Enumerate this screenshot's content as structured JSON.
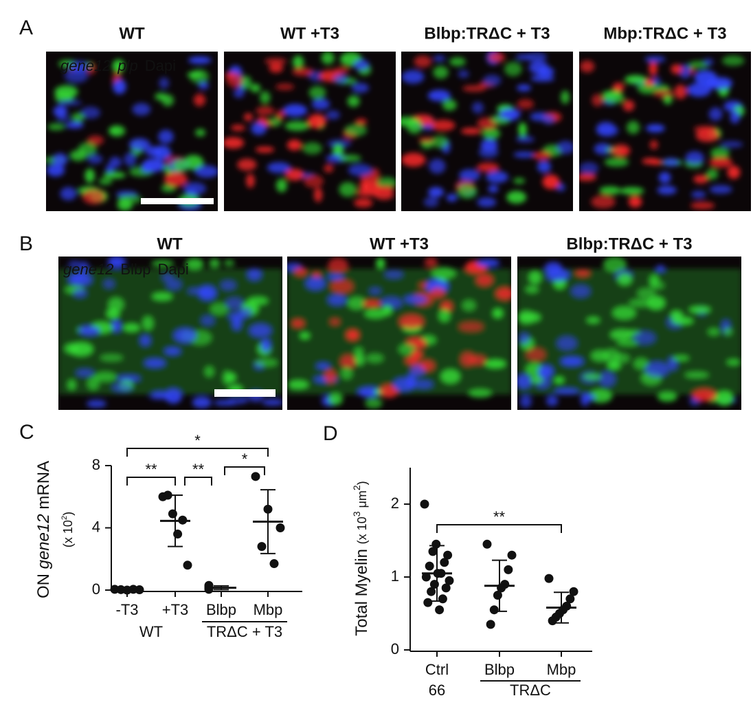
{
  "panel_a": {
    "letter": "A",
    "titles": [
      "WT",
      "WT +T3",
      "Blbp:TRΔC + T3",
      "Mbp:TRΔC + T3"
    ],
    "legend": [
      {
        "text": "gene12",
        "color": "#ff2020",
        "italic": true
      },
      {
        "text": "plp",
        "color": "#30e030",
        "italic": true
      },
      {
        "text": "Dapi",
        "color": "#3040ff"
      }
    ]
  },
  "panel_b": {
    "letter": "B",
    "titles": [
      "WT",
      "WT +T3",
      "Blbp:TRΔC + T3"
    ],
    "legend": [
      {
        "text": "gene12",
        "color": "#ff2020",
        "italic": true
      },
      {
        "text": "Blbp",
        "color": "#30e030"
      },
      {
        "text": "Dapi",
        "color": "#3040ff"
      }
    ]
  },
  "chart_data": [
    {
      "type": "strip",
      "letter": "C",
      "y_label": [
        {
          "text": "ON "
        },
        {
          "text": "gene12",
          "italic": true
        },
        {
          "text": " mRNA"
        }
      ],
      "y_unit": [
        {
          "text": "(x 10"
        },
        {
          "text": "2",
          "sup": true
        },
        {
          "text": ")"
        }
      ],
      "categories": [
        "-T3",
        "+T3",
        "Blbp",
        "Mbp"
      ],
      "points": [
        [
          0.05,
          0.0,
          0.02,
          0.03,
          0.05
        ],
        [
          6.0,
          6.1,
          4.9,
          3.6,
          4.5,
          1.6
        ],
        [
          0.3,
          0.2,
          0.1,
          0.05,
          0.15,
          0.1,
          0.2
        ],
        [
          7.3,
          5.2,
          4.0,
          2.8,
          1.7
        ]
      ],
      "means": [
        0.03,
        4.45,
        0.15,
        4.4
      ],
      "sd": [
        0.03,
        1.65,
        0.12,
        2.05
      ],
      "color": "#111",
      "ylim": [
        0,
        8
      ],
      "yticks": [
        0,
        4,
        8
      ],
      "groups": [
        {
          "label": "WT",
          "categories": [
            "-T3",
            "+T3"
          ],
          "line": false
        },
        {
          "label": "TRΔC + T3",
          "categories": [
            "Blbp",
            "Mbp"
          ],
          "line": true
        }
      ],
      "brackets": [
        {
          "label": "*",
          "between": [
            "-T3",
            "Mbp"
          ]
        },
        {
          "label": "**",
          "between": [
            "-T3",
            "+T3"
          ]
        },
        {
          "label": "**",
          "between": [
            "+T3",
            "Blbp"
          ]
        },
        {
          "label": "*",
          "between": [
            "Blbp",
            "Mbp"
          ]
        }
      ]
    },
    {
      "type": "strip",
      "letter": "D",
      "y_label": [
        {
          "text": "Total Myelin "
        },
        {
          "text": "(x 10",
          "small": true
        },
        {
          "text": "3",
          "sup": true
        },
        {
          "text": " μm",
          "small": true
        },
        {
          "text": "2",
          "sup": true
        },
        {
          "text": ")",
          "small": true
        }
      ],
      "categories": [
        "Ctrl",
        "Blbp",
        "Mbp"
      ],
      "points": [
        [
          2.0,
          1.45,
          1.3,
          1.35,
          1.2,
          1.15,
          1.05,
          1.0,
          1.05,
          0.95,
          0.9,
          0.85,
          0.8,
          0.7,
          0.65,
          0.55
        ],
        [
          1.45,
          1.3,
          1.1,
          0.9,
          0.85,
          0.75,
          0.55,
          0.35
        ],
        [
          0.98,
          0.8,
          0.7,
          0.6,
          0.55,
          0.5,
          0.45,
          0.4
        ]
      ],
      "means": [
        1.05,
        0.88,
        0.58
      ],
      "sd": [
        0.38,
        0.35,
        0.21
      ],
      "color": "#111",
      "ylim": [
        0,
        2.5
      ],
      "yticks": [
        0,
        1,
        2
      ],
      "groups": [
        {
          "label": "66",
          "categories": [
            "Ctrl"
          ],
          "line": false
        },
        {
          "label": "TRΔC",
          "categories": [
            "Blbp",
            "Mbp"
          ],
          "line": true
        }
      ],
      "brackets": [
        {
          "label": "**",
          "between": [
            "Ctrl",
            "Mbp"
          ]
        }
      ]
    }
  ]
}
